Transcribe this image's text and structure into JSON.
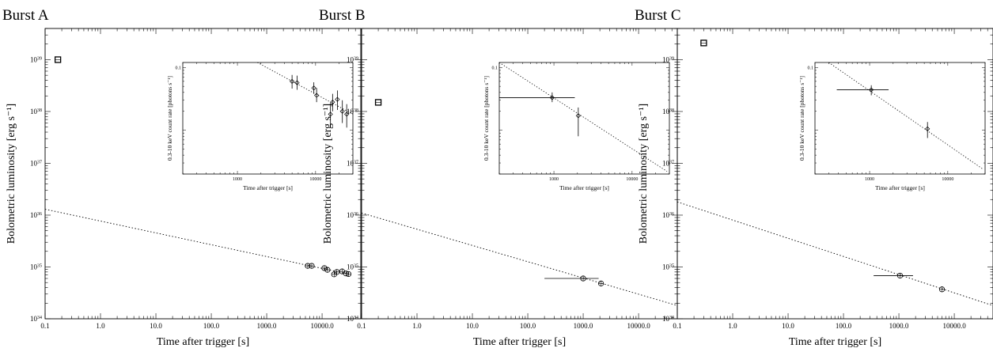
{
  "chart_data": [
    {
      "type": "scatter",
      "title": "Burst A",
      "xlabel": "Time after trigger [s]",
      "ylabel": "Bolometric luminosity [erg s⁻¹]",
      "xscale": "log",
      "yscale": "log",
      "xlim": [
        0.1,
        50000
      ],
      "ylim": [
        1e+34,
        4e+39
      ],
      "xtick_labels": [
        "0.1",
        "1.0",
        "10.0",
        "100.0",
        "1000.0",
        "10000.0"
      ],
      "ytick_labels": [
        "10",
        "10",
        "10",
        "10",
        "10",
        "10"
      ],
      "ytick_exponents": [
        "34",
        "35",
        "36",
        "37",
        "38",
        "39"
      ],
      "square_marker": {
        "x": 0.17,
        "y": 1e+39
      },
      "fit_line": {
        "x": [
          0.1,
          30000
        ],
        "y": [
          1.3e+36,
          7.3e+34
        ]
      },
      "points": [
        {
          "x": 5500,
          "y": 1.05e+35
        },
        {
          "x": 6500,
          "y": 1.05e+35
        },
        {
          "x": 11000,
          "y": 9.5e+34
        },
        {
          "x": 12500,
          "y": 8.8e+34
        },
        {
          "x": 16500,
          "y": 7.2e+34
        },
        {
          "x": 18500,
          "y": 8e+34
        },
        {
          "x": 23000,
          "y": 8.2e+34
        },
        {
          "x": 27000,
          "y": 7.5e+34
        },
        {
          "x": 30000,
          "y": 7.3e+34
        }
      ],
      "inset": {
        "xlabel": "Time after trigger [s]",
        "ylabel": "0.3-10 keV count rate [photons s⁻¹]",
        "xlim": [
          200,
          30000
        ],
        "ylim": [
          0.002,
          0.12
        ],
        "xtick_labels": [
          "1000",
          "10000"
        ],
        "ytick_labels": [
          "0.1"
        ],
        "fit_line": {
          "x": [
            1800,
            30000
          ],
          "y": [
            0.12,
            0.018
          ]
        },
        "points": [
          {
            "x": 5000,
            "y": 0.06,
            "ylo": 0.046,
            "yhi": 0.076
          },
          {
            "x": 5800,
            "y": 0.057,
            "ylo": 0.044,
            "yhi": 0.074
          },
          {
            "x": 9500,
            "y": 0.047,
            "ylo": 0.038,
            "yhi": 0.058
          },
          {
            "x": 10300,
            "y": 0.036,
            "ylo": 0.028,
            "yhi": 0.047
          },
          {
            "x": 15500,
            "y": 0.018,
            "ylo": 0.011,
            "yhi": 0.027
          },
          {
            "x": 16500,
            "y": 0.028,
            "ylo": 0.02,
            "yhi": 0.038
          },
          {
            "x": 19000,
            "y": 0.031,
            "ylo": 0.021,
            "yhi": 0.043
          },
          {
            "x": 22000,
            "y": 0.02,
            "ylo": 0.013,
            "yhi": 0.03
          },
          {
            "x": 25000,
            "y": 0.018,
            "ylo": 0.011,
            "yhi": 0.026
          }
        ]
      }
    },
    {
      "type": "scatter",
      "title": "Burst B",
      "xlabel": "Time after trigger [s]",
      "ylabel": "Bolometric luminosity [erg s⁻¹]",
      "xscale": "log",
      "yscale": "log",
      "xlim": [
        0.1,
        50000
      ],
      "ylim": [
        1e+34,
        4e+39
      ],
      "xtick_labels": [
        "0.1",
        "1.0",
        "10.0",
        "100.0",
        "1000.0",
        "10000.0"
      ],
      "ytick_labels": [
        "10",
        "10",
        "10",
        "10",
        "10",
        "10"
      ],
      "ytick_exponents": [
        "34",
        "35",
        "36",
        "37",
        "38",
        "39"
      ],
      "square_marker": {
        "x": 0.2,
        "y": 1.5e+38
      },
      "fit_line": {
        "x": [
          0.1,
          50000
        ],
        "y": [
          1.1e+36,
          1.8e+34
        ]
      },
      "points": [
        {
          "x": 1000,
          "y": 6e+34,
          "xlo": 200,
          "xhi": 1900
        },
        {
          "x": 2100,
          "y": 4.8e+34
        }
      ],
      "inset": {
        "xlabel": "Time after trigger [s]",
        "ylabel": "0.3-10 keV count rate [photons s⁻¹]",
        "xlim": [
          200,
          30000
        ],
        "ylim": [
          0.002,
          0.12
        ],
        "xtick_labels": [
          "1000",
          "10000"
        ],
        "ytick_labels": [
          "0.1"
        ],
        "fit_line": {
          "x": [
            200,
            28000
          ],
          "y": [
            0.12,
            0.0022
          ]
        },
        "points": [
          {
            "x": 950,
            "y": 0.033,
            "xlo": 200,
            "xhi": 1850,
            "ylo": 0.028,
            "yhi": 0.04
          },
          {
            "x": 2050,
            "y": 0.017,
            "ylo": 0.008,
            "yhi": 0.023
          }
        ]
      }
    },
    {
      "type": "scatter",
      "title": "Burst C",
      "xlabel": "Time after trigger [s]",
      "ylabel": "Bolometric luminosity [erg s⁻¹]",
      "xscale": "log",
      "yscale": "log",
      "xlim": [
        0.1,
        50000
      ],
      "ylim": [
        1e+34,
        4e+39
      ],
      "xtick_labels": [
        "0.1",
        "1.0",
        "10.0",
        "100.0",
        "1000.0",
        "10000.0"
      ],
      "ytick_labels": [
        "10",
        "10",
        "10",
        "10",
        "10",
        "10"
      ],
      "ytick_exponents": [
        "34",
        "35",
        "36",
        "37",
        "38",
        "39"
      ],
      "square_marker": {
        "x": 0.3,
        "y": 2.1e+39
      },
      "fit_line": {
        "x": [
          0.1,
          50000
        ],
        "y": [
          1.8e+36,
          1.8e+34
        ]
      },
      "points": [
        {
          "x": 1050,
          "y": 6.8e+34,
          "xlo": 350,
          "xhi": 1800
        },
        {
          "x": 6000,
          "y": 3.7e+34
        }
      ],
      "inset": {
        "xlabel": "Time after trigger [s]",
        "ylabel": "0.3-10 keV count rate [photons s⁻¹]",
        "xlim": [
          200,
          30000
        ],
        "ylim": [
          0.002,
          0.12
        ],
        "xtick_labels": [
          "1000",
          "10000"
        ],
        "ytick_labels": [
          "0.1"
        ],
        "fit_line": {
          "x": [
            300,
            28000
          ],
          "y": [
            0.12,
            0.0024
          ]
        },
        "points": [
          {
            "x": 1050,
            "y": 0.044,
            "xlo": 380,
            "xhi": 1750,
            "ylo": 0.036,
            "yhi": 0.052
          },
          {
            "x": 5500,
            "y": 0.0105,
            "ylo": 0.0075,
            "yhi": 0.0135
          }
        ]
      }
    }
  ]
}
